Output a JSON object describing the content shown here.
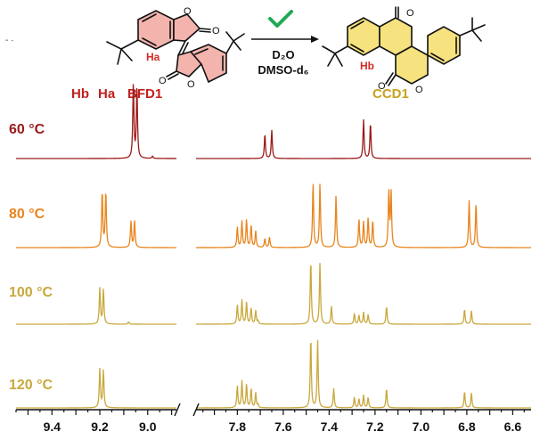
{
  "scheme": {
    "reactant_label": "BFD1",
    "product_label": "CCD1",
    "check_mark": "check-icon",
    "reagent_1": "D₂O",
    "reagent_2": "DMSO-d₆",
    "ha_label": "Ha",
    "hb_label": "Hb",
    "peak_label_hb": "Hb",
    "peak_label_ha": "Ha",
    "atom_o": "O",
    "colors": {
      "reactant": "#c0201e",
      "product": "#c9a020",
      "arrow_check": "#22a855",
      "reactant_ring_fill": "#f3b4ad",
      "product_ring_fill": "#f6e27e"
    }
  },
  "chart_data": {
    "type": "line",
    "title": "",
    "xlabel": "",
    "ylabel": "",
    "x_reversed": true,
    "axis_break": true,
    "panels": [
      {
        "xlim": [
          9.55,
          8.88
        ],
        "ticks": [
          9.4,
          9.2,
          9.0
        ],
        "tick_labels": [
          "9.4",
          "9.2",
          "9.0"
        ]
      },
      {
        "xlim": [
          7.98,
          6.52
        ],
        "ticks": [
          7.8,
          7.6,
          7.4,
          7.2,
          7.0,
          6.8,
          6.6
        ],
        "tick_labels": [
          "7.8",
          "7.6",
          "7.4",
          "7.2",
          "7.0",
          "6.8",
          "6.6"
        ]
      }
    ],
    "series": [
      {
        "name": "60 °C",
        "color": "#9b1a1a",
        "peaks": [
          [
            9.06,
            1.0
          ],
          [
            9.045,
            0.95
          ],
          [
            8.98,
            0.03
          ],
          [
            7.68,
            0.33
          ],
          [
            7.65,
            0.38
          ],
          [
            7.25,
            0.52
          ],
          [
            7.22,
            0.48
          ]
        ]
      },
      {
        "name": "80 °C",
        "color": "#e8851e",
        "peaks": [
          [
            9.19,
            0.75
          ],
          [
            9.175,
            0.75
          ],
          [
            9.07,
            0.35
          ],
          [
            9.055,
            0.35
          ],
          [
            7.8,
            0.28
          ],
          [
            7.78,
            0.35
          ],
          [
            7.76,
            0.38
          ],
          [
            7.74,
            0.3
          ],
          [
            7.72,
            0.22
          ],
          [
            7.68,
            0.12
          ],
          [
            7.66,
            0.14
          ],
          [
            7.47,
            0.88
          ],
          [
            7.44,
            0.85
          ],
          [
            7.37,
            0.7
          ],
          [
            7.27,
            0.38
          ],
          [
            7.25,
            0.34
          ],
          [
            7.23,
            0.4
          ],
          [
            7.21,
            0.36
          ],
          [
            7.14,
            0.76
          ],
          [
            7.13,
            0.74
          ],
          [
            6.79,
            0.63
          ],
          [
            6.76,
            0.6
          ]
        ]
      },
      {
        "name": "100 °C",
        "color": "#c9a83c",
        "peaks": [
          [
            9.2,
            0.48
          ],
          [
            9.185,
            0.46
          ],
          [
            9.08,
            0.03
          ],
          [
            7.8,
            0.26
          ],
          [
            7.78,
            0.32
          ],
          [
            7.76,
            0.3
          ],
          [
            7.74,
            0.22
          ],
          [
            7.72,
            0.18
          ],
          [
            7.71,
            0.04
          ],
          [
            7.48,
            0.86
          ],
          [
            7.44,
            0.82
          ],
          [
            7.39,
            0.24
          ],
          [
            7.29,
            0.14
          ],
          [
            7.27,
            0.12
          ],
          [
            7.25,
            0.16
          ],
          [
            7.23,
            0.13
          ],
          [
            7.15,
            0.24
          ],
          [
            6.81,
            0.2
          ],
          [
            6.78,
            0.18
          ]
        ]
      },
      {
        "name": "120 °C",
        "color": "#c9a83c",
        "peaks": [
          [
            9.2,
            0.52
          ],
          [
            9.185,
            0.5
          ],
          [
            7.8,
            0.3
          ],
          [
            7.78,
            0.36
          ],
          [
            7.76,
            0.32
          ],
          [
            7.74,
            0.26
          ],
          [
            7.72,
            0.2
          ],
          [
            7.71,
            0.04
          ],
          [
            7.48,
            0.95
          ],
          [
            7.45,
            0.9
          ],
          [
            7.38,
            0.26
          ],
          [
            7.29,
            0.14
          ],
          [
            7.27,
            0.12
          ],
          [
            7.25,
            0.17
          ],
          [
            7.23,
            0.14
          ],
          [
            7.15,
            0.26
          ],
          [
            6.81,
            0.22
          ],
          [
            6.78,
            0.2
          ]
        ]
      }
    ],
    "temperature_labels": [
      "60 °C",
      "80 °C",
      "100 °C",
      "120 °C"
    ]
  }
}
